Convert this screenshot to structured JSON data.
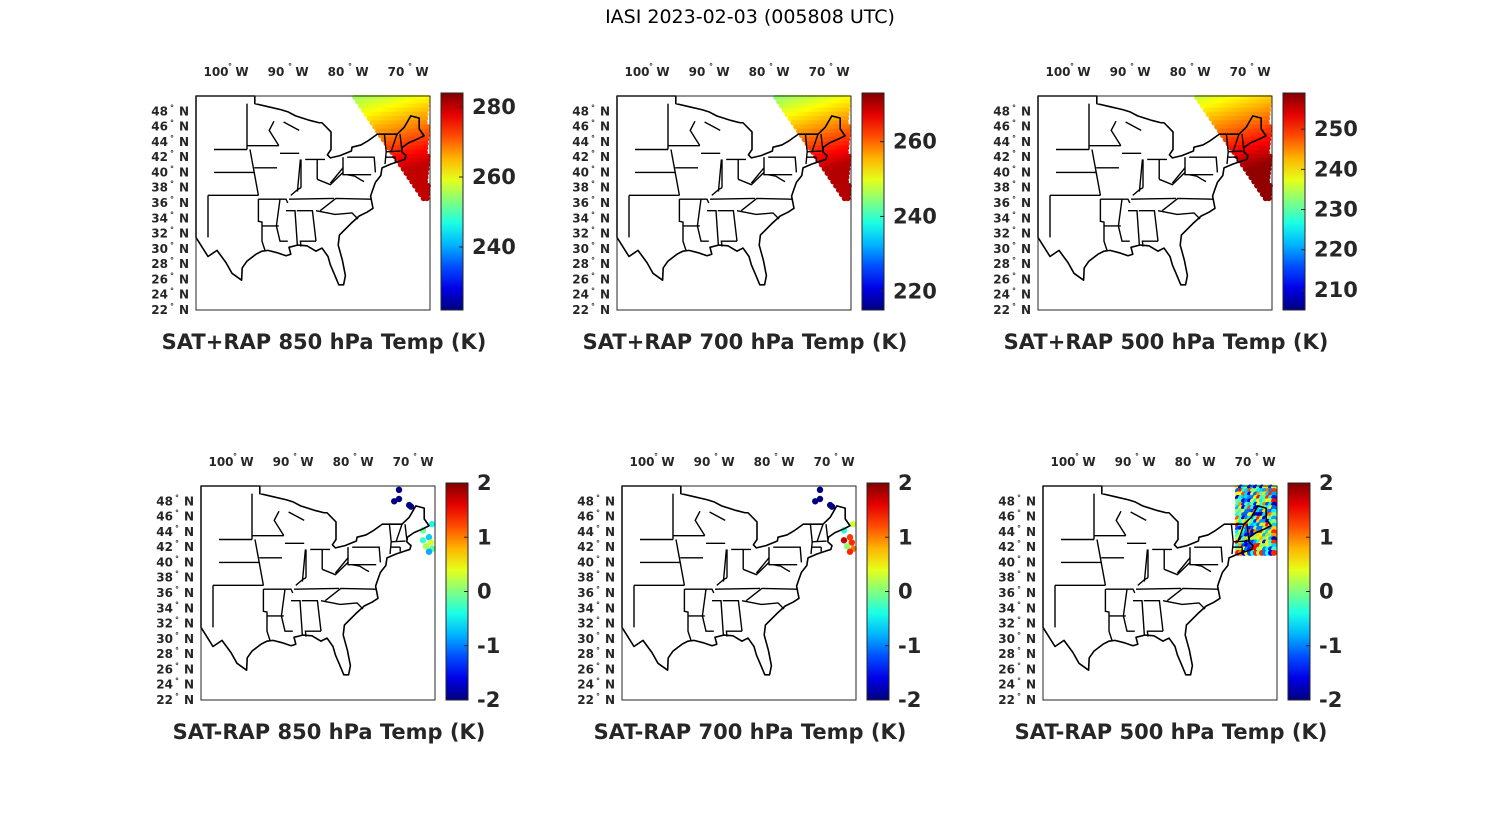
{
  "figure_title": "IASI 2023-02-03 (005808 UTC)",
  "lon_ticks": [
    {
      "lon": -100,
      "label": "100",
      "dir": "W"
    },
    {
      "lon": -90,
      "label": "90",
      "dir": "W"
    },
    {
      "lon": -80,
      "label": "80",
      "dir": "W"
    },
    {
      "lon": -70,
      "label": "70",
      "dir": "W"
    }
  ],
  "lat_ticks": [
    {
      "lat": 48,
      "label": "48",
      "dir": "N"
    },
    {
      "lat": 46,
      "label": "46",
      "dir": "N"
    },
    {
      "lat": 44,
      "label": "44",
      "dir": "N"
    },
    {
      "lat": 42,
      "label": "42",
      "dir": "N"
    },
    {
      "lat": 40,
      "label": "40",
      "dir": "N"
    },
    {
      "lat": 38,
      "label": "38",
      "dir": "N"
    },
    {
      "lat": 36,
      "label": "36",
      "dir": "N"
    },
    {
      "lat": 34,
      "label": "34",
      "dir": "N"
    },
    {
      "lat": 32,
      "label": "32",
      "dir": "N"
    },
    {
      "lat": 30,
      "label": "30",
      "dir": "N"
    },
    {
      "lat": 28,
      "label": "28",
      "dir": "N"
    },
    {
      "lat": 26,
      "label": "26",
      "dir": "N"
    },
    {
      "lat": 24,
      "label": "24",
      "dir": "N"
    },
    {
      "lat": 22,
      "label": "22",
      "dir": "N"
    }
  ],
  "map_extent": {
    "lon": [
      -105,
      -66
    ],
    "lat": [
      22,
      50
    ]
  },
  "colormap": "jet",
  "chart_data": [
    {
      "type": "scatter",
      "title": "SAT+RAP 850 hPa Temp (K)",
      "colorbar": {
        "range": [
          222,
          284
        ],
        "ticks": [
          240,
          260,
          280
        ]
      },
      "region": "swath-east",
      "value_range": [
        255,
        280
      ]
    },
    {
      "type": "scatter",
      "title": "SAT+RAP 700 hPa Temp (K)",
      "colorbar": {
        "range": [
          215,
          273
        ],
        "ticks": [
          220,
          240,
          260
        ]
      },
      "region": "swath-east",
      "value_range": [
        245,
        270
      ]
    },
    {
      "type": "scatter",
      "title": "SAT+RAP 500 hPa Temp (K)",
      "colorbar": {
        "range": [
          205,
          259
        ],
        "ticks": [
          210,
          220,
          230,
          240,
          250
        ]
      },
      "region": "swath-east",
      "value_range": [
        236,
        258
      ]
    },
    {
      "type": "scatter",
      "title": "SAT-RAP 850 hPa Temp (K)",
      "colorbar": {
        "range": [
          -2,
          2
        ],
        "ticks": [
          -2,
          -1,
          0,
          1,
          2
        ]
      },
      "region": "sparse-ne",
      "value_range": [
        -2,
        2
      ]
    },
    {
      "type": "scatter",
      "title": "SAT-RAP 700 hPa Temp (K)",
      "colorbar": {
        "range": [
          -2,
          2
        ],
        "ticks": [
          -2,
          -1,
          0,
          1,
          2
        ]
      },
      "region": "sparse-ne",
      "value_range": [
        -2,
        2
      ]
    },
    {
      "type": "scatter",
      "title": "SAT-RAP 500 hPa Temp (K)",
      "colorbar": {
        "range": [
          -2,
          2
        ],
        "ticks": [
          -2,
          -1,
          0,
          1,
          2
        ]
      },
      "region": "dense-ne",
      "value_range": [
        -2,
        2
      ]
    }
  ]
}
